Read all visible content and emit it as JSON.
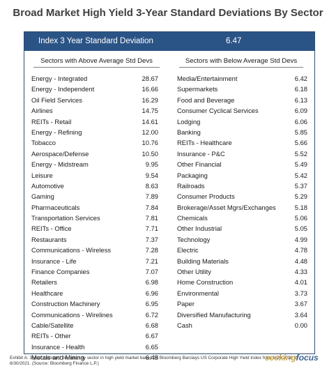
{
  "title": "Broad Market High Yield 3-Year Standard Deviations By Sector",
  "header": {
    "label": "Index 3 Year Standard Deviation",
    "value": "6.47"
  },
  "colors": {
    "band": "#2b5486",
    "title": "#3f3f3f",
    "logo": "#c8a24a"
  },
  "left": {
    "heading": "Sectors with Above Average Std Devs",
    "rows": [
      {
        "name": "Energy - Integrated",
        "value": "28.67"
      },
      {
        "name": "Energy - Independent",
        "value": "16.66"
      },
      {
        "name": "Oil Field Services",
        "value": "16.29"
      },
      {
        "name": "Airlines",
        "value": "14.75"
      },
      {
        "name": "REITs - Retail",
        "value": "14.61"
      },
      {
        "name": "Energy - Refining",
        "value": "12.00"
      },
      {
        "name": "Tobacco",
        "value": "10.76"
      },
      {
        "name": "Aerospace/Defense",
        "value": "10.50"
      },
      {
        "name": "Energy - Midstream",
        "value": "9.95"
      },
      {
        "name": "Leisure",
        "value": "9.54"
      },
      {
        "name": "Automotive",
        "value": "8.63"
      },
      {
        "name": "Gaming",
        "value": "7.89"
      },
      {
        "name": "Pharmaceuticals",
        "value": "7.84"
      },
      {
        "name": "Transportation Services",
        "value": "7.81"
      },
      {
        "name": "REITs - Office",
        "value": "7.71"
      },
      {
        "name": "Restaurants",
        "value": "7.37"
      },
      {
        "name": "Communications - Wireless",
        "value": "7.28"
      },
      {
        "name": "Insurance - Life",
        "value": "7.21"
      },
      {
        "name": "Finance Companies",
        "value": "7.07"
      },
      {
        "name": "Retailers",
        "value": "6.98"
      },
      {
        "name": "Healthcare",
        "value": "6.96"
      },
      {
        "name": "Construction Machinery",
        "value": "6.95"
      },
      {
        "name": "Communications - Wirelines",
        "value": "6.72"
      },
      {
        "name": "Cable/Satellite",
        "value": "6.68"
      },
      {
        "name": "REITs - Other",
        "value": "6.67"
      },
      {
        "name": "Insurance - Health",
        "value": "6.65"
      },
      {
        "name": "Metals and Mining",
        "value": "6.48"
      }
    ]
  },
  "right": {
    "heading": "Sectors with Below Average Std Devs",
    "rows": [
      {
        "name": "Media/Entertainment",
        "value": "6.42"
      },
      {
        "name": "Supermarkets",
        "value": "6.18"
      },
      {
        "name": "Food and Beverage",
        "value": "6.13"
      },
      {
        "name": "Consumer Cyclical Services",
        "value": "6.09"
      },
      {
        "name": "Lodging",
        "value": "6.06"
      },
      {
        "name": "Banking",
        "value": "5.85"
      },
      {
        "name": "REITs - Healthcare",
        "value": "5.66"
      },
      {
        "name": "Insurance - P&C",
        "value": "5.52"
      },
      {
        "name": "Other Financial",
        "value": "5.49"
      },
      {
        "name": "Packaging",
        "value": "5.42"
      },
      {
        "name": "Railroads",
        "value": "5.37"
      },
      {
        "name": "Consumer Products",
        "value": "5.29"
      },
      {
        "name": "Brokerage/Asset Mgrs/Exchanges",
        "value": "5.18"
      },
      {
        "name": "Chemicals",
        "value": "5.06"
      },
      {
        "name": "Other Industrial",
        "value": "5.05"
      },
      {
        "name": "Technology",
        "value": "4.99"
      },
      {
        "name": "Electric",
        "value": "4.78"
      },
      {
        "name": "Building Materials",
        "value": "4.48"
      },
      {
        "name": "Other Utility",
        "value": "4.33"
      },
      {
        "name": "Home Construction",
        "value": "4.01"
      },
      {
        "name": "Environmental",
        "value": "3.73"
      },
      {
        "name": "Paper",
        "value": "3.67"
      },
      {
        "name": "Diversified Manufacturing",
        "value": "3.64"
      },
      {
        "name": "Cash",
        "value": "0.00"
      }
    ]
  },
  "caption": "Exhibit A: 3-year standard deviation by sector in high yield market based on Bloomberg Barclays US Corporate High Yield Index from 6/29/2018 to 6/30/2021. (Source: Bloomberg Finance L.P.)",
  "logo": "seekingfocus"
}
